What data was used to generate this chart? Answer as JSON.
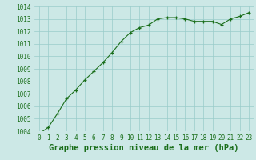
{
  "x": [
    0,
    1,
    2,
    3,
    4,
    5,
    6,
    7,
    8,
    9,
    10,
    11,
    12,
    13,
    14,
    15,
    16,
    17,
    18,
    19,
    20,
    21,
    22,
    23
  ],
  "y": [
    1003.8,
    1004.3,
    1005.4,
    1006.6,
    1007.3,
    1008.1,
    1008.8,
    1009.5,
    1010.3,
    1011.2,
    1011.9,
    1012.3,
    1012.5,
    1013.0,
    1013.1,
    1013.1,
    1013.0,
    1012.8,
    1012.8,
    1012.8,
    1012.55,
    1013.0,
    1013.2,
    1013.5
  ],
  "line_color": "#1a6e1a",
  "marker": "+",
  "marker_color": "#1a6e1a",
  "bg_color": "#cce8e6",
  "grid_color": "#99ccca",
  "xlabel": "Graphe pression niveau de la mer (hPa)",
  "xlabel_color": "#1a6e1a",
  "tick_color": "#1a6e1a",
  "ylim": [
    1004,
    1014
  ],
  "xlim": [
    -0.5,
    23.5
  ],
  "yticks": [
    1004,
    1005,
    1006,
    1007,
    1008,
    1009,
    1010,
    1011,
    1012,
    1013,
    1014
  ],
  "xticks": [
    0,
    1,
    2,
    3,
    4,
    5,
    6,
    7,
    8,
    9,
    10,
    11,
    12,
    13,
    14,
    15,
    16,
    17,
    18,
    19,
    20,
    21,
    22,
    23
  ],
  "tick_fontsize": 5.5,
  "xlabel_fontsize": 7.5
}
